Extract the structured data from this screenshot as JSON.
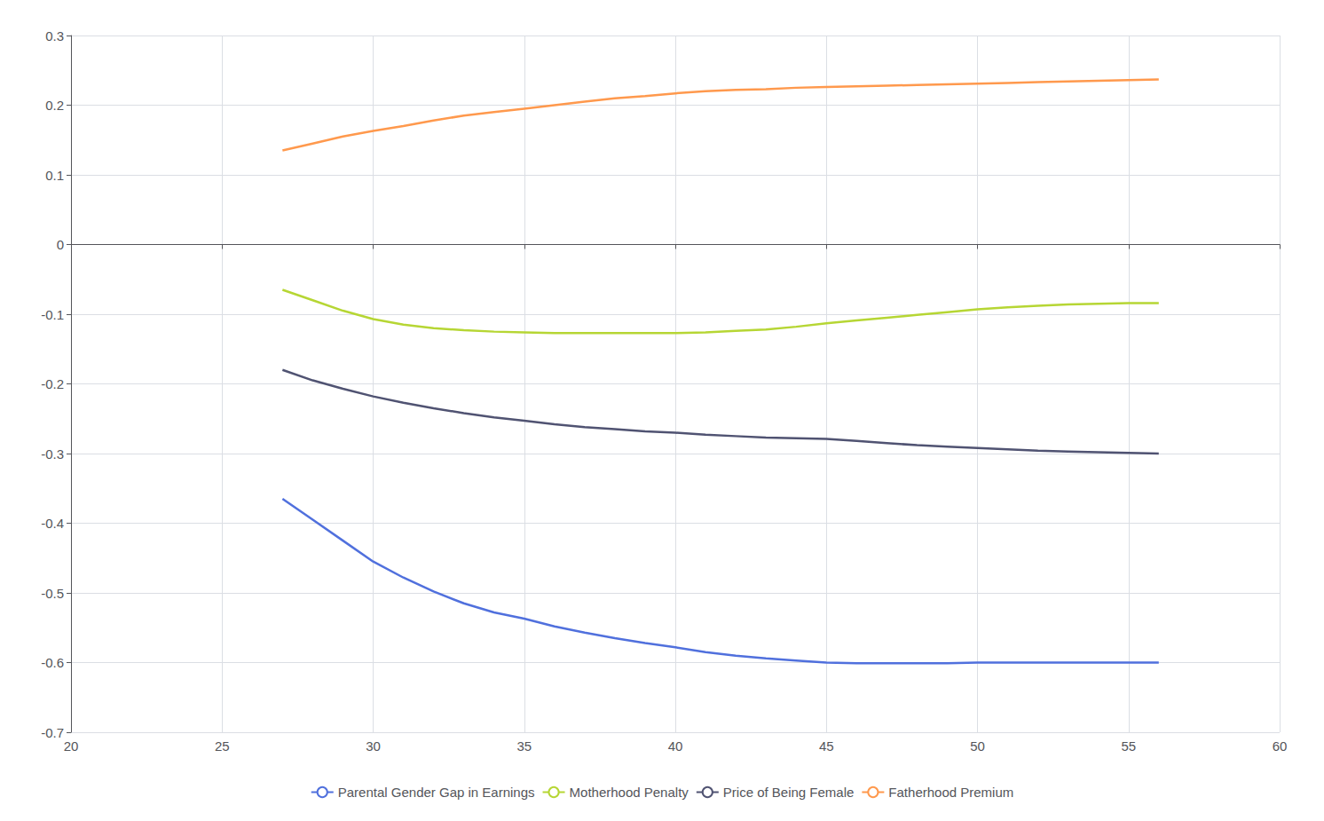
{
  "chart_data": {
    "type": "line",
    "x": [
      27,
      28,
      29,
      30,
      31,
      32,
      33,
      34,
      35,
      36,
      37,
      38,
      39,
      40,
      41,
      42,
      43,
      44,
      45,
      46,
      47,
      48,
      49,
      50,
      51,
      52,
      53,
      54,
      55,
      56
    ],
    "series": [
      {
        "name": "Parental Gender Gap in Earnings",
        "values": [
          -0.365,
          -0.395,
          -0.425,
          -0.455,
          -0.478,
          -0.498,
          -0.515,
          -0.528,
          -0.537,
          -0.548,
          -0.557,
          -0.565,
          -0.572,
          -0.578,
          -0.585,
          -0.59,
          -0.594,
          -0.597,
          -0.6,
          -0.601,
          -0.601,
          -0.601,
          -0.601,
          -0.6,
          -0.6,
          -0.6,
          -0.6,
          -0.6,
          -0.6,
          -0.6
        ]
      },
      {
        "name": "Motherhood Penalty",
        "values": [
          -0.065,
          -0.08,
          -0.095,
          -0.107,
          -0.115,
          -0.12,
          -0.123,
          -0.125,
          -0.126,
          -0.127,
          -0.127,
          -0.127,
          -0.127,
          -0.127,
          -0.126,
          -0.124,
          -0.122,
          -0.118,
          -0.113,
          -0.109,
          -0.105,
          -0.101,
          -0.097,
          -0.093,
          -0.09,
          -0.088,
          -0.086,
          -0.085,
          -0.084,
          -0.084
        ]
      },
      {
        "name": "Price of Being Female",
        "values": [
          -0.18,
          -0.195,
          -0.207,
          -0.218,
          -0.227,
          -0.235,
          -0.242,
          -0.248,
          -0.253,
          -0.258,
          -0.262,
          -0.265,
          -0.268,
          -0.27,
          -0.273,
          -0.275,
          -0.277,
          -0.278,
          -0.279,
          -0.282,
          -0.285,
          -0.288,
          -0.29,
          -0.292,
          -0.294,
          -0.296,
          -0.297,
          -0.298,
          -0.299,
          -0.3
        ]
      },
      {
        "name": "Fatherhood Premium",
        "values": [
          0.135,
          0.145,
          0.155,
          0.163,
          0.17,
          0.178,
          0.185,
          0.19,
          0.195,
          0.2,
          0.205,
          0.21,
          0.213,
          0.217,
          0.22,
          0.222,
          0.223,
          0.225,
          0.226,
          0.227,
          0.228,
          0.229,
          0.23,
          0.231,
          0.232,
          0.233,
          0.234,
          0.235,
          0.236,
          0.237
        ]
      }
    ],
    "xlim": [
      20,
      60
    ],
    "xticks": [
      20,
      25,
      30,
      35,
      40,
      45,
      50,
      55,
      60
    ],
    "ylim": [
      -0.7,
      0.3
    ],
    "yticks": [
      -0.7,
      -0.6,
      -0.5,
      -0.4,
      -0.3,
      -0.2,
      -0.1,
      0,
      0.1,
      0.2,
      0.3
    ],
    "grid": true,
    "legend": "bottom"
  }
}
